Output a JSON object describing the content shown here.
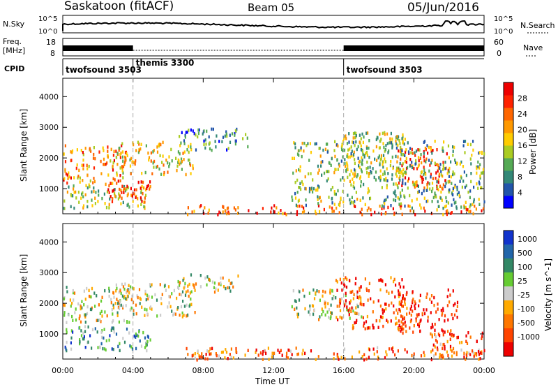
{
  "header": {
    "station": "Saskatoon (fitACF)",
    "beam": "Beam 05",
    "date": "05/Jun/2016"
  },
  "strip_panels": {
    "nsky_label": "N.Sky",
    "nsky_ticks": [
      "10^5",
      "10^0"
    ],
    "nsearch_label": "N.Search",
    "nsearch_ticks": [
      "10^5",
      "10^0"
    ],
    "freq_label_1": "Freq.",
    "freq_label_2": "[MHz]",
    "freq_ticks": [
      "18",
      "8"
    ],
    "nave_label": "Nave",
    "nave_ticks": [
      "60",
      "0"
    ],
    "cpid_label": "CPID",
    "cpid_segments": [
      {
        "name": "twofsound 3503",
        "start_hour": 0,
        "end_hour": 4
      },
      {
        "name": "themis 3300",
        "start_hour": 4,
        "end_hour": 16
      },
      {
        "name": "twofsound 3503",
        "start_hour": 16,
        "end_hour": 24
      }
    ]
  },
  "chart_data": [
    {
      "type": "heatmap",
      "title": "",
      "xlabel": "Time UT",
      "ylabel": "Slant Range [km]",
      "x_ticks": [
        "00:00",
        "04:00",
        "08:00",
        "12:00",
        "16:00",
        "20:00",
        "00:00"
      ],
      "x_range_hours": [
        0,
        24
      ],
      "y_ticks": [
        1000,
        2000,
        3000,
        4000
      ],
      "ylim": [
        180,
        4600
      ],
      "colorbar": {
        "label": "Power [dB]",
        "ticks": [
          "4",
          "8",
          "12",
          "16",
          "20",
          "24",
          "28"
        ],
        "colors": [
          "#0000ff",
          "#2255aa",
          "#338877",
          "#55aa55",
          "#aacc22",
          "#ffcc00",
          "#ff9900",
          "#ff6600",
          "#ff2200",
          "#ee0000"
        ]
      },
      "scatter_regions": [
        {
          "t0": 0.0,
          "t1": 3.6,
          "r0": 1200,
          "r1": 2500,
          "level": 0.7
        },
        {
          "t0": 0.0,
          "t1": 5.0,
          "r0": 400,
          "r1": 1200,
          "level": 0.45
        },
        {
          "t0": 2.5,
          "t1": 5.0,
          "r0": 600,
          "r1": 1300,
          "level": 0.95
        },
        {
          "t0": 3.0,
          "t1": 7.5,
          "r0": 1500,
          "r1": 2600,
          "level": 0.55
        },
        {
          "t0": 6.5,
          "t1": 10.5,
          "r0": 2300,
          "r1": 3000,
          "level": 0.25
        },
        {
          "t0": 7.0,
          "t1": 24.0,
          "r0": 200,
          "r1": 500,
          "level": 0.8
        },
        {
          "t0": 13.0,
          "t1": 17.5,
          "r0": 500,
          "r1": 2600,
          "level": 0.4
        },
        {
          "t0": 15.5,
          "t1": 19.5,
          "r0": 1300,
          "r1": 2900,
          "level": 0.45
        },
        {
          "t0": 19.0,
          "t1": 22.0,
          "r0": 1000,
          "r1": 2400,
          "level": 0.85
        },
        {
          "t0": 18.0,
          "t1": 24.0,
          "r0": 400,
          "r1": 2600,
          "level": 0.35
        }
      ]
    },
    {
      "type": "heatmap",
      "title": "",
      "xlabel": "Time UT",
      "ylabel": "Slant Range [km]",
      "x_ticks": [
        "00:00",
        "04:00",
        "08:00",
        "12:00",
        "16:00",
        "20:00",
        "00:00"
      ],
      "x_range_hours": [
        0,
        24
      ],
      "y_ticks": [
        1000,
        2000,
        3000,
        4000
      ],
      "ylim": [
        180,
        4600
      ],
      "colorbar": {
        "label": "Velocity [m s^-1]",
        "ticks": [
          "1000",
          "500",
          "100",
          "25",
          "-25",
          "-100",
          "-500",
          "-1000"
        ],
        "colors": [
          "#1133cc",
          "#2266aa",
          "#338866",
          "#66cc33",
          "#cccccc",
          "#ffaa00",
          "#ff7700",
          "#ff4400",
          "#ee0000"
        ]
      },
      "scatter_regions": [
        {
          "t0": 0.0,
          "t1": 4.0,
          "r0": 1400,
          "r1": 2600,
          "level": 0.5
        },
        {
          "t0": 0.0,
          "t1": 5.0,
          "r0": 500,
          "r1": 1300,
          "level": 0.3
        },
        {
          "t0": 3.0,
          "t1": 7.5,
          "r0": 1600,
          "r1": 2700,
          "level": 0.5
        },
        {
          "t0": 6.5,
          "t1": 10.0,
          "r0": 2400,
          "r1": 3000,
          "level": 0.5
        },
        {
          "t0": 7.0,
          "t1": 24.0,
          "r0": 200,
          "r1": 600,
          "level": 0.75
        },
        {
          "t0": 13.0,
          "t1": 17.0,
          "r0": 1500,
          "r1": 2500,
          "level": 0.5
        },
        {
          "t0": 15.5,
          "t1": 19.5,
          "r0": 1200,
          "r1": 2900,
          "level": 0.85
        },
        {
          "t0": 19.0,
          "t1": 22.5,
          "r0": 1000,
          "r1": 2500,
          "level": 0.9
        },
        {
          "t0": 21.0,
          "t1": 24.0,
          "r0": 300,
          "r1": 1100,
          "level": 0.8
        }
      ]
    }
  ]
}
